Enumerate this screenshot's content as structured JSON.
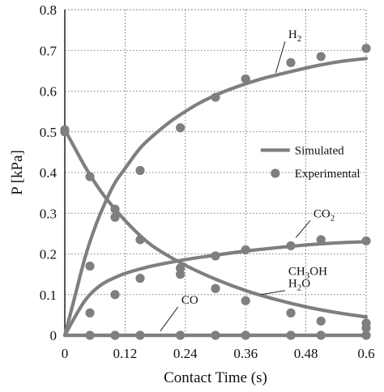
{
  "chart_data": {
    "type": "line",
    "title": "",
    "xlabel": "Contact Time (s)",
    "ylabel": "P [kPa]",
    "xlim": [
      0,
      0.6
    ],
    "ylim": [
      0,
      0.8
    ],
    "x_ticks": [
      "0",
      "0.12",
      "0.24",
      "0.36",
      "0.48",
      "0.6"
    ],
    "x_tick_values": [
      0,
      0.12,
      0.24,
      0.36,
      0.48,
      0.6
    ],
    "y_ticks": [
      "0",
      "0.1",
      "0.2",
      "0.3",
      "0.4",
      "0.5",
      "0.6",
      "0.7",
      "0.8"
    ],
    "y_tick_values": [
      0,
      0.1,
      0.2,
      0.3,
      0.4,
      0.5,
      0.6,
      0.7,
      0.8
    ],
    "grid": true,
    "grid_style": "dotted",
    "series_color": "#7f7f7f",
    "legend": {
      "placement": "center-right",
      "entries": [
        {
          "label": "Simulated",
          "marker": "line"
        },
        {
          "label": "Experimental",
          "marker": "circle"
        }
      ]
    },
    "annotations": [
      {
        "key": "H2",
        "base": "H",
        "sub": "2",
        "after": "",
        "x": 0.445,
        "y": 0.73,
        "lead_to": [
          0.42,
          0.645
        ]
      },
      {
        "key": "CO2",
        "base": "CO",
        "sub": "2",
        "after": "",
        "x": 0.495,
        "y": 0.29,
        "lead_to": [
          0.46,
          0.24
        ]
      },
      {
        "key": "CH3OH",
        "base": "CH",
        "sub": "3",
        "after": "OH",
        "x": 0.445,
        "y": 0.148,
        "lead_to": null
      },
      {
        "key": "H2O",
        "base": "H",
        "sub": "2",
        "after": "O",
        "x": 0.445,
        "y": 0.118,
        "lead_to": [
          0.39,
          0.1
        ]
      },
      {
        "key": "CO",
        "base": "CO",
        "sub": "",
        "after": "",
        "x": 0.232,
        "y": 0.078,
        "lead_to": [
          0.19,
          0.01
        ]
      }
    ],
    "series": [
      {
        "name": "H2",
        "simulated": {
          "x": [
            0,
            0.02,
            0.04,
            0.06,
            0.08,
            0.1,
            0.12,
            0.15,
            0.18,
            0.21,
            0.24,
            0.27,
            0.3,
            0.33,
            0.36,
            0.4,
            0.45,
            0.5,
            0.55,
            0.6
          ],
          "y": [
            0,
            0.095,
            0.19,
            0.265,
            0.325,
            0.375,
            0.41,
            0.46,
            0.495,
            0.525,
            0.55,
            0.572,
            0.59,
            0.605,
            0.618,
            0.633,
            0.648,
            0.662,
            0.673,
            0.68
          ]
        },
        "experimental": {
          "x": [
            0,
            0.05,
            0.1,
            0.15,
            0.23,
            0.3,
            0.36,
            0.45,
            0.51,
            0.6
          ],
          "y": [
            0.5,
            0.39,
            0.29,
            0.405,
            0.51,
            0.585,
            0.63,
            0.67,
            0.685,
            0.705
          ]
        }
      },
      {
        "name": "CO",
        "simulated": {
          "x": [
            0,
            0.6
          ],
          "y": [
            0,
            0
          ]
        },
        "experimental": {
          "x": [
            0,
            0.05,
            0.1,
            0.15,
            0.23,
            0.3,
            0.36,
            0.45,
            0.51,
            0.6
          ],
          "y": [
            0.505,
            0,
            0,
            0,
            0,
            0,
            0,
            0,
            0,
            0
          ]
        }
      },
      {
        "name": "CO2",
        "simulated": {
          "x": [
            0,
            0.02,
            0.04,
            0.06,
            0.08,
            0.1,
            0.12,
            0.15,
            0.18,
            0.24,
            0.3,
            0.36,
            0.42,
            0.48,
            0.54,
            0.6
          ],
          "y": [
            0.505,
            0.46,
            0.415,
            0.375,
            0.34,
            0.31,
            0.282,
            0.245,
            0.215,
            0.172,
            0.138,
            0.11,
            0.088,
            0.07,
            0.056,
            0.045
          ]
        },
        "experimental": {
          "x": [
            0.05,
            0.1,
            0.15,
            0.23,
            0.3,
            0.36,
            0.45,
            0.51,
            0.6
          ],
          "y": [
            0.055,
            0.1,
            0.14,
            0.165,
            0.195,
            0.21,
            0.22,
            0.235,
            0.232
          ]
        }
      },
      {
        "name": "H2O",
        "simulated": {
          "x": [
            0,
            0.02,
            0.04,
            0.06,
            0.08,
            0.1,
            0.12,
            0.15,
            0.18,
            0.24,
            0.3,
            0.36,
            0.42,
            0.48,
            0.54,
            0.6
          ],
          "y": [
            0,
            0.045,
            0.085,
            0.112,
            0.13,
            0.142,
            0.152,
            0.163,
            0.172,
            0.186,
            0.197,
            0.207,
            0.215,
            0.222,
            0.227,
            0.23
          ]
        },
        "experimental": {
          "x": [
            0.05,
            0.1,
            0.15,
            0.23,
            0.3,
            0.36,
            0.45,
            0.51,
            0.6
          ],
          "y": [
            0.17,
            0.31,
            0.235,
            0.15,
            0.115,
            0.085,
            0.055,
            0.035,
            0.03
          ]
        }
      },
      {
        "name": "CH3OH",
        "simulated": {
          "x": [
            0,
            0.6
          ],
          "y": [
            0,
            0
          ]
        },
        "experimental": {
          "x": [
            0.6
          ],
          "y": [
            0.018
          ]
        }
      }
    ]
  }
}
